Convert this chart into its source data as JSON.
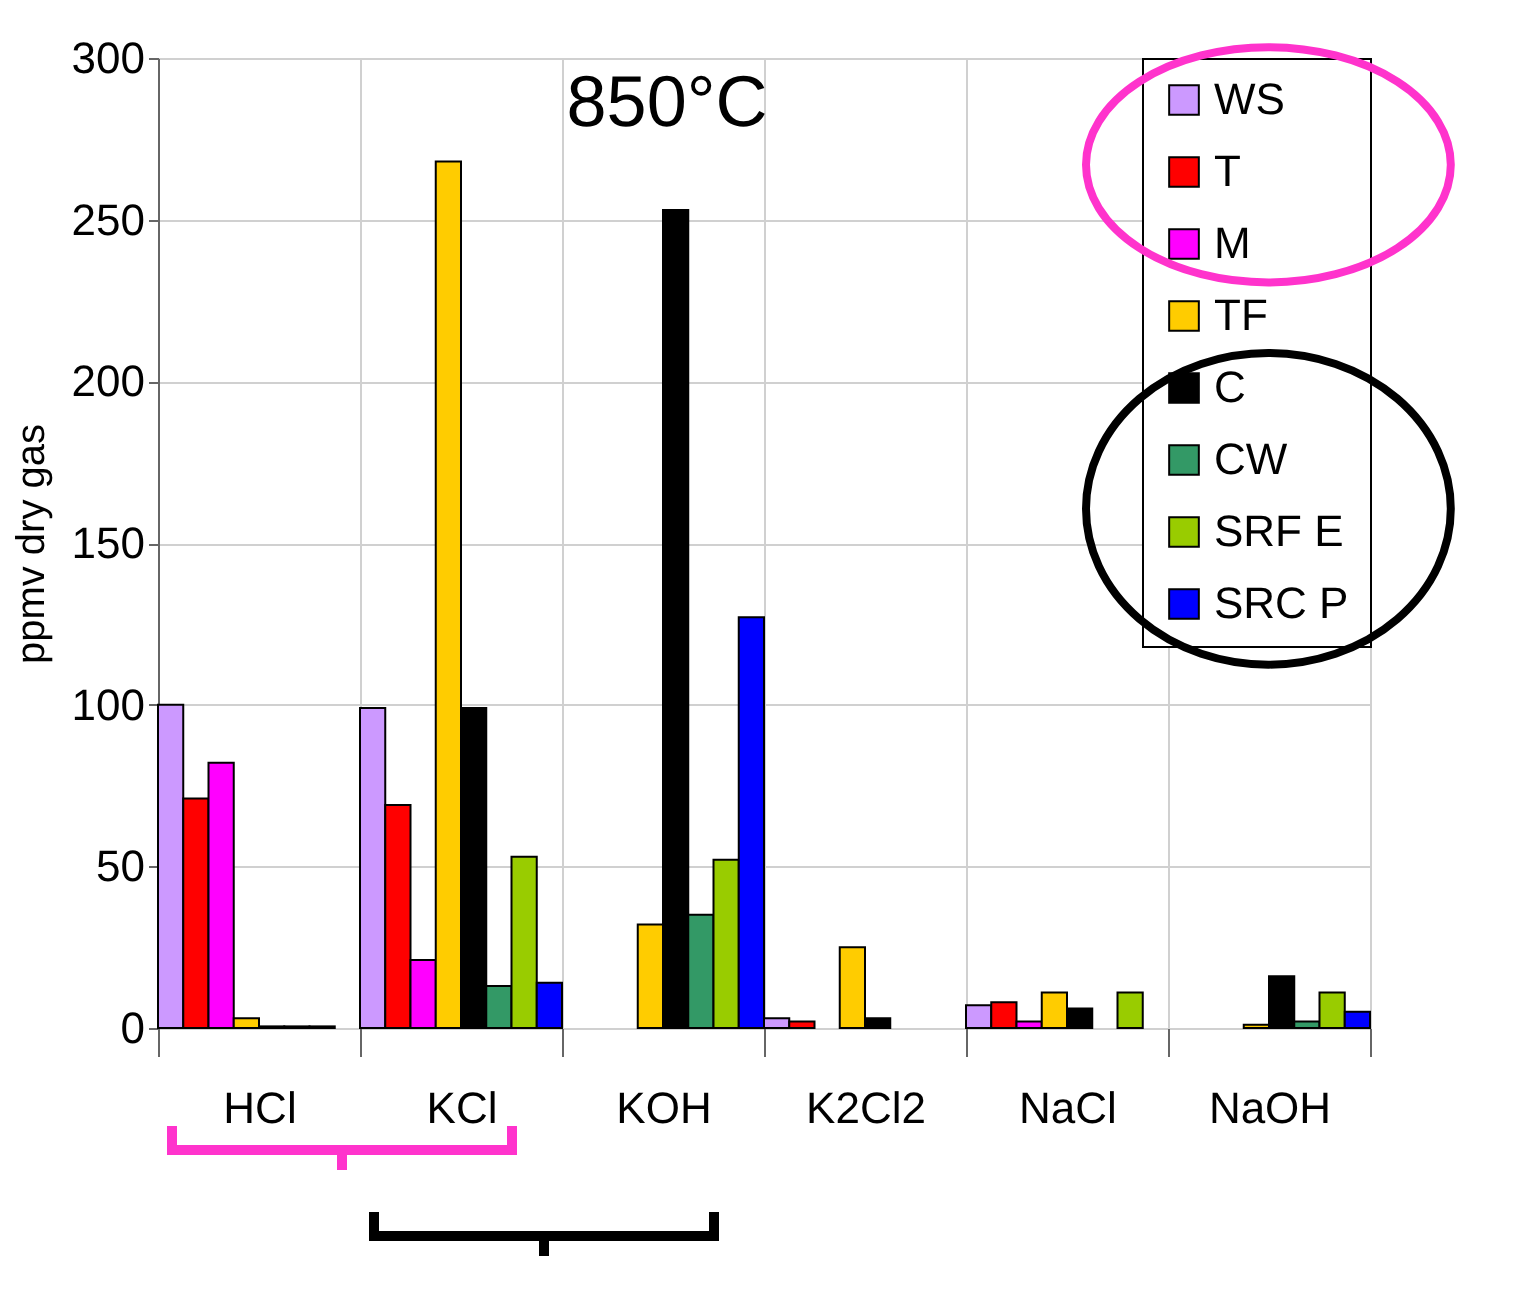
{
  "chart_data": {
    "type": "bar",
    "ylabel": "ppmv dry gas",
    "annotations": [
      "850°C"
    ],
    "categories": [
      "HCl",
      "KCl",
      "KOH",
      "K2Cl2",
      "NaCl",
      "NaOH"
    ],
    "series": [
      {
        "name": "WS",
        "color": "#cc99ff",
        "values": [
          100,
          99,
          null,
          3,
          7,
          null
        ]
      },
      {
        "name": "T",
        "color": "#ff0000",
        "values": [
          71,
          69,
          null,
          2,
          8,
          null
        ]
      },
      {
        "name": "M",
        "color": "#ff00ff",
        "values": [
          82,
          21,
          null,
          null,
          2,
          null
        ]
      },
      {
        "name": "TF",
        "color": "#ffcc00",
        "values": [
          3,
          268,
          32,
          25,
          11,
          1
        ]
      },
      {
        "name": "C",
        "color": "#000000",
        "values": [
          0.5,
          99,
          253,
          3,
          6,
          16
        ]
      },
      {
        "name": "CW",
        "color": "#339966",
        "values": [
          0.5,
          13,
          35,
          null,
          null,
          2
        ]
      },
      {
        "name": "SRF E",
        "color": "#99cc00",
        "values": [
          0.5,
          53,
          52,
          null,
          11,
          11
        ]
      },
      {
        "name": "SRC P",
        "color": "#0000ff",
        "values": [
          null,
          14,
          127,
          null,
          null,
          5
        ]
      }
    ],
    "ylim": [
      0,
      300
    ],
    "yticks": [
      0,
      50,
      100,
      150,
      200,
      250,
      300
    ],
    "grid": true,
    "legend": "top right"
  }
}
